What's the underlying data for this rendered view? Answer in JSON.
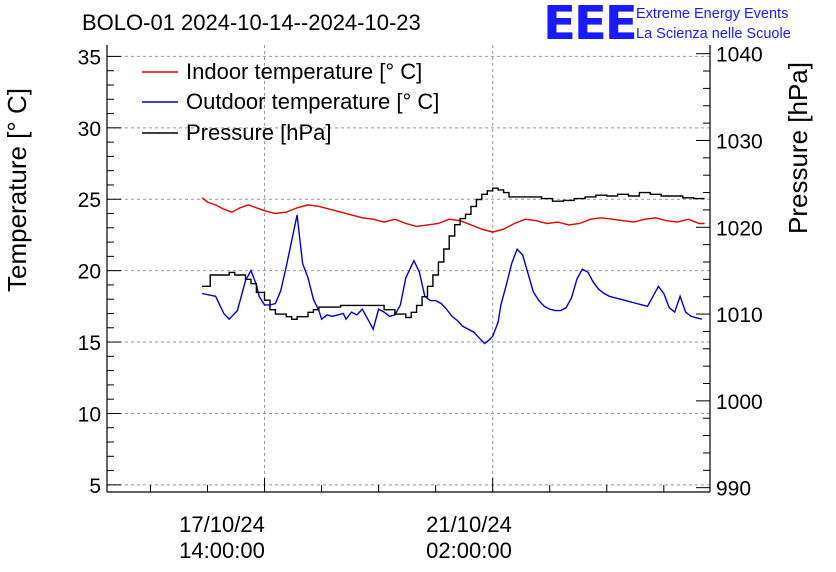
{
  "header": {
    "title": "BOLO-01 2024-10-14--2024-10-23",
    "logo_text": "EEE",
    "logo_line1": "Extreme Energy Events",
    "logo_line2": "La Scienza nelle Scuole"
  },
  "chart_data": {
    "type": "line",
    "title": "BOLO-01 2024-10-14--2024-10-23",
    "ylabel_left": "Temperature [° C]",
    "ylabel_right": "Pressure [hPa]",
    "ylim_left": [
      4.5,
      35.8
    ],
    "ylim_right": [
      989.5,
      1041
    ],
    "yticks_left": [
      "5",
      "10",
      "15",
      "20",
      "25",
      "30",
      "35"
    ],
    "yticks_right": [
      "990",
      "1000",
      "1010",
      "1020",
      "1030",
      "1040"
    ],
    "xlim_hours": [
      -58,
      164
    ],
    "xticks": [
      {
        "hour": 0,
        "line1": "17/10/24",
        "line2": "14:00:00"
      },
      {
        "hour": 84,
        "line1": "21/10/24",
        "line2": "02:00:00"
      }
    ],
    "grid": true,
    "legend": "top-left",
    "colors": {
      "indoor": "#e60000",
      "outdoor": "#0000cc",
      "pressure": "#000000"
    },
    "series": [
      {
        "name": "Indoor temperature [° C]",
        "axis": "left",
        "x": [
          -23,
          -21,
          -18,
          -15,
          -12,
          -9,
          -6,
          -3,
          0,
          4,
          8,
          12,
          16,
          20,
          24,
          28,
          32,
          36,
          40,
          44,
          48,
          52,
          56,
          60,
          64,
          68,
          72,
          76,
          80,
          84,
          88,
          92,
          96,
          100,
          104,
          108,
          112,
          116,
          120,
          124,
          128,
          132,
          136,
          140,
          144,
          148,
          152,
          156,
          160,
          162
        ],
        "y": [
          25.1,
          24.8,
          24.6,
          24.3,
          24.1,
          24.4,
          24.6,
          24.4,
          24.2,
          24.0,
          24.1,
          24.4,
          24.6,
          24.5,
          24.3,
          24.1,
          23.9,
          23.7,
          23.6,
          23.4,
          23.6,
          23.3,
          23.1,
          23.2,
          23.3,
          23.6,
          23.5,
          23.2,
          22.9,
          22.7,
          22.9,
          23.3,
          23.6,
          23.5,
          23.3,
          23.4,
          23.2,
          23.3,
          23.6,
          23.7,
          23.6,
          23.5,
          23.4,
          23.6,
          23.7,
          23.5,
          23.4,
          23.6,
          23.3,
          23.3
        ]
      },
      {
        "name": "Outdoor temperature [° C]",
        "axis": "left",
        "x": [
          -23,
          -18,
          -15,
          -13,
          -12,
          -10,
          -7,
          -5,
          -3,
          -2,
          0,
          2,
          4,
          6,
          8,
          10,
          12,
          14,
          16,
          18,
          20,
          21,
          23,
          25,
          27,
          29,
          30,
          32,
          34,
          36,
          38,
          40,
          42,
          44,
          46,
          48,
          50,
          52,
          55,
          57,
          59,
          61,
          63,
          65,
          67,
          69,
          71,
          73,
          75,
          77,
          79,
          81,
          83,
          84,
          86,
          87,
          89,
          91,
          93,
          95,
          97,
          99,
          101,
          103,
          105,
          107,
          109,
          111,
          113,
          115,
          117,
          119,
          121,
          123,
          125,
          127,
          129,
          131,
          133,
          135,
          137,
          139,
          141,
          143,
          145,
          147,
          149,
          151,
          153,
          155,
          157,
          159,
          161
        ],
        "y": [
          18.4,
          18.2,
          17.0,
          16.6,
          16.8,
          17.2,
          19.3,
          20.0,
          19.0,
          18.2,
          17.6,
          17.6,
          17.7,
          18.6,
          20.3,
          22.1,
          23.9,
          20.5,
          19.5,
          18.0,
          17.2,
          16.6,
          16.9,
          16.8,
          16.9,
          17.0,
          16.6,
          17.1,
          16.9,
          17.3,
          16.6,
          15.9,
          17.3,
          17.1,
          16.8,
          16.9,
          17.6,
          19.5,
          20.7,
          19.9,
          18.2,
          17.9,
          17.9,
          17.7,
          17.3,
          16.8,
          16.5,
          16.1,
          15.9,
          15.7,
          15.3,
          14.9,
          15.2,
          15.4,
          16.4,
          17.6,
          19.0,
          20.5,
          21.5,
          21.1,
          19.8,
          18.5,
          17.9,
          17.5,
          17.3,
          17.2,
          17.2,
          17.4,
          18.1,
          19.4,
          20.1,
          19.9,
          19.2,
          18.7,
          18.4,
          18.2,
          18.1,
          18.0,
          17.9,
          17.8,
          17.7,
          17.6,
          17.5,
          18.2,
          18.9,
          18.4,
          17.4,
          17.1,
          18.2,
          17.1,
          16.8,
          16.7,
          16.6
        ]
      },
      {
        "name": "Pressure [hPa]",
        "axis": "right",
        "x": [
          -23,
          -20,
          -15,
          -13,
          -11,
          -7,
          -5,
          -3,
          0,
          2,
          4,
          8,
          10,
          12,
          16,
          18,
          20,
          22,
          24,
          28,
          32,
          36,
          40,
          44,
          48,
          52,
          54,
          56,
          58,
          60,
          62,
          64,
          66,
          68,
          70,
          72,
          74,
          76,
          78,
          80,
          82,
          84,
          86,
          88,
          90,
          94,
          98,
          102,
          106,
          110,
          114,
          118,
          122,
          126,
          130,
          134,
          138,
          142,
          146,
          150,
          154,
          158,
          162
        ],
        "y": [
          1013.2,
          1014.5,
          1014.5,
          1014.8,
          1014.5,
          1014.0,
          1013.5,
          1012.5,
          1011.6,
          1010.5,
          1010.0,
          1009.7,
          1009.4,
          1009.7,
          1010.2,
          1010.5,
          1010.8,
          1010.8,
          1010.8,
          1011.0,
          1011.0,
          1011.0,
          1011.0,
          1010.5,
          1010.0,
          1009.6,
          1010.2,
          1011.0,
          1012.0,
          1013.2,
          1014.5,
          1016.0,
          1017.5,
          1019.0,
          1020.3,
          1021.0,
          1021.5,
          1022.4,
          1023.2,
          1023.8,
          1024.2,
          1024.5,
          1024.3,
          1024.0,
          1023.5,
          1023.5,
          1023.5,
          1023.3,
          1023.0,
          1023.1,
          1023.3,
          1023.5,
          1023.7,
          1023.6,
          1023.8,
          1023.6,
          1024.0,
          1023.8,
          1023.6,
          1023.6,
          1023.4,
          1023.3,
          1023.3
        ]
      }
    ]
  }
}
